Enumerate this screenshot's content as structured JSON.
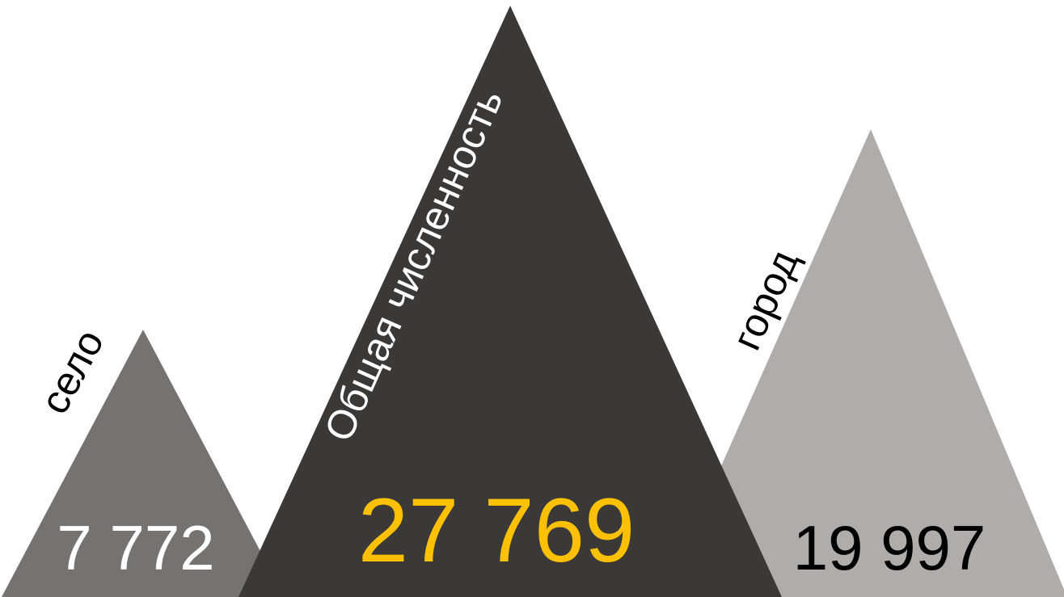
{
  "chart_data": {
    "type": "triangle-pictogram",
    "categories": [
      "село",
      "Общая численность",
      "город"
    ],
    "values": [
      7772,
      27769,
      19997
    ],
    "value_labels": [
      "7 772",
      "27 769",
      "19 997"
    ],
    "colors": {
      "село": "#757271",
      "Общая численность": "#3a3938",
      "город": "#afacab",
      "total_value_text": "#ffc000",
      "rural_value_text": "#ffffff",
      "city_value_text": "#000000",
      "rural_label_text": "#000000",
      "total_label_text": "#ffffff",
      "city_label_text": "#000000"
    }
  }
}
